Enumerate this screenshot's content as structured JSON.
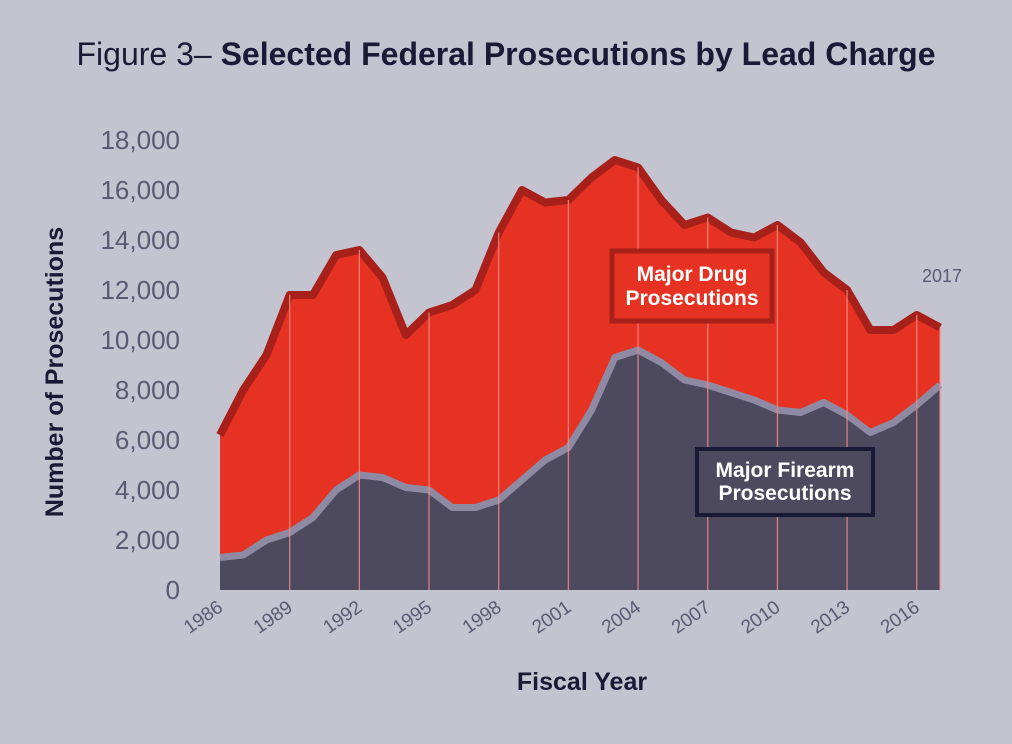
{
  "chart_data": {
    "type": "area",
    "title_prefix": "Figure 3–",
    "title": "Selected Federal Prosecutions by Lead Charge",
    "xlabel": "Fiscal Year",
    "ylabel": "Number of Prosecutions",
    "ylim": [
      0,
      18000
    ],
    "y_ticks": [
      0,
      2000,
      4000,
      6000,
      8000,
      10000,
      12000,
      14000,
      16000,
      18000
    ],
    "y_tick_labels": [
      "0",
      "2,000",
      "4,000",
      "6,000",
      "8,000",
      "10,000",
      "12,000",
      "14,000",
      "16,000",
      "18,000"
    ],
    "x": [
      1986,
      1987,
      1988,
      1989,
      1990,
      1991,
      1992,
      1993,
      1994,
      1995,
      1996,
      1997,
      1998,
      1999,
      2000,
      2001,
      2002,
      2003,
      2004,
      2005,
      2006,
      2007,
      2008,
      2009,
      2010,
      2011,
      2012,
      2013,
      2014,
      2015,
      2016,
      2017
    ],
    "x_tick_labels": [
      "1986",
      "1989",
      "1992",
      "1995",
      "1998",
      "2001",
      "2004",
      "2007",
      "2010",
      "2013",
      "2016"
    ],
    "x_tick_values": [
      1986,
      1989,
      1992,
      1995,
      1998,
      2001,
      2004,
      2007,
      2010,
      2013,
      2016
    ],
    "end_label": "2017",
    "series": [
      {
        "name": "Major Drug Prosecutions",
        "label_line1": "Major Drug",
        "label_line2": "Prosecutions",
        "fill": "#e63222",
        "stroke": "#a8201a",
        "values": [
          6200,
          8000,
          9400,
          11800,
          11800,
          13400,
          13600,
          12500,
          10200,
          11100,
          11400,
          12000,
          14300,
          16000,
          15500,
          15600,
          16500,
          17200,
          16900,
          15600,
          14600,
          14900,
          14300,
          14100,
          14600,
          13900,
          12700,
          12000,
          10400,
          10400,
          11000,
          10500
        ]
      },
      {
        "name": "Major Firearm Prosecutions",
        "label_line1": "Major Firearm",
        "label_line2": "Prosecutions",
        "fill": "#4d4a60",
        "stroke": "#8e8aa4",
        "values": [
          1300,
          1400,
          2000,
          2300,
          2900,
          4000,
          4600,
          4500,
          4100,
          4000,
          3300,
          3300,
          3600,
          4400,
          5200,
          5700,
          7200,
          9300,
          9600,
          9100,
          8400,
          8200,
          7900,
          7600,
          7200,
          7100,
          7500,
          7000,
          6300,
          6700,
          7400,
          8200
        ]
      }
    ]
  }
}
